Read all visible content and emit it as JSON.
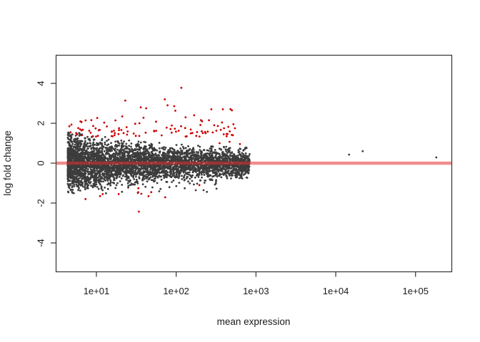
{
  "window": {
    "background": "#ffffff"
  },
  "chart_data": {
    "type": "scatter",
    "title": "",
    "xlabel": "mean expression",
    "ylabel": "log fold change",
    "x_scale": "log10",
    "xlim_log10": [
      0.49,
      5.45
    ],
    "ylim": [
      -5.43,
      5.43
    ],
    "grid": false,
    "legend": "none",
    "x_ticks": [
      {
        "v": 10,
        "label": "1e+01"
      },
      {
        "v": 100,
        "label": "1e+02"
      },
      {
        "v": 1000,
        "label": "1e+03"
      },
      {
        "v": 10000,
        "label": "1e+04"
      },
      {
        "v": 100000,
        "label": "1e+05"
      }
    ],
    "y_ticks": [
      {
        "v": -4,
        "label": "-4"
      },
      {
        "v": -2,
        "label": "-2"
      },
      {
        "v": 0,
        "label": "0"
      },
      {
        "v": 2,
        "label": "2"
      },
      {
        "v": 4,
        "label": "4"
      }
    ],
    "reference_line": {
      "y": 0,
      "color": "#e62d2d",
      "opacity": 0.55,
      "thickness_px": 4.5
    },
    "point_radius_px": 1.4,
    "seed": 20240807,
    "axis_color": "#333333",
    "series": [
      {
        "name": "non_significant",
        "color": "#3c3c3c",
        "cloud": {
          "n": 4200,
          "lx_min": 0.64,
          "lx_span": 2.28,
          "lx_skew": 1.3,
          "sigma_base": 0.27,
          "sigma_amp": 0.42,
          "sigma_decay": 1.15,
          "clip": 2.4
        },
        "stragglers": {
          "n": 60,
          "lx_min": 0.66,
          "lx_max": 2.55,
          "lfc_min": -1.55,
          "lfc_max": -0.75
        },
        "points": [
          [
            14700,
            0.43
          ],
          [
            21800,
            0.6
          ],
          [
            182000,
            0.29
          ]
        ]
      },
      {
        "name": "significant",
        "color": "#cc0000",
        "cloud": {
          "n": 96,
          "lx_min": 0.66,
          "lx_span": 2.06,
          "lx_skew": 1.15,
          "lfc_offset": 1.33,
          "lfc_spread": 0.5,
          "lfc_max": 3.3
        },
        "neg_cloud": {
          "n": 7,
          "lx_min": 0.78,
          "lx_max": 2.35,
          "lfc_min": -1.85,
          "lfc_max": -1.2
        },
        "points": [
          [
            116,
            3.78
          ],
          [
            23,
            3.14
          ],
          [
            72,
            3.2
          ],
          [
            36,
            2.8
          ],
          [
            78,
            2.9
          ],
          [
            42,
            2.75
          ],
          [
            276,
            2.7
          ],
          [
            385,
            2.7
          ],
          [
            500,
            2.65
          ],
          [
            168,
            2.4
          ],
          [
            131,
            2.3
          ],
          [
            211,
            2.1
          ],
          [
            258,
            2.15
          ],
          [
            545,
            1.75
          ],
          [
            230,
            1.57
          ],
          [
            287,
            1.54
          ],
          [
            350,
            1.0
          ],
          [
            467,
            1.07
          ],
          [
            630,
            0.96
          ],
          [
            34,
            -2.43
          ],
          [
            7.3,
            -1.8
          ],
          [
            12,
            -1.55
          ],
          [
            19,
            -1.55
          ],
          [
            195,
            -1.1
          ]
        ]
      }
    ]
  }
}
